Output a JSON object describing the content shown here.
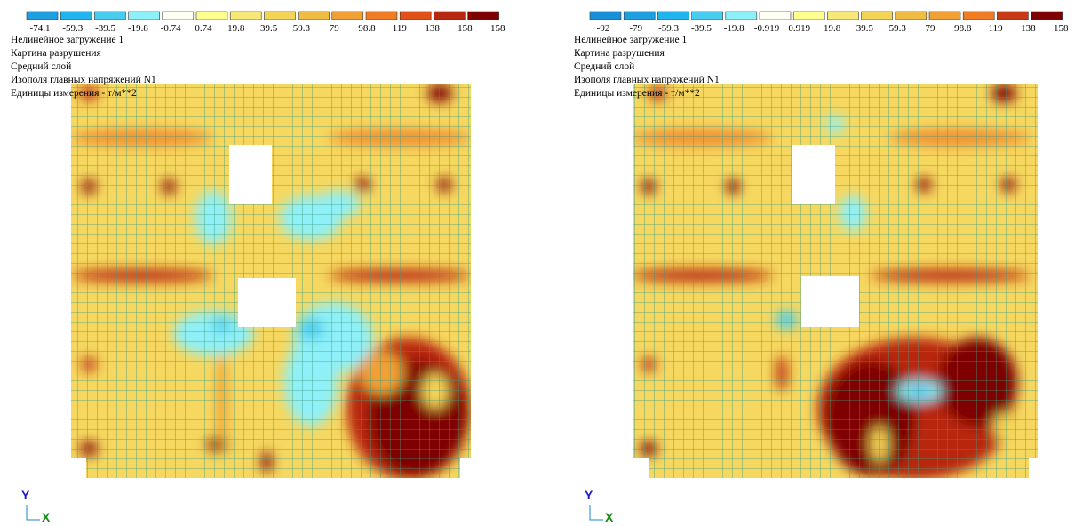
{
  "panels": [
    {
      "legend": {
        "labels": [
          "-74.1",
          "-59.3",
          "-39.5",
          "-19.8",
          "-0.74",
          "0.74",
          "19.8",
          "39.5",
          "59.3",
          "79",
          "98.8",
          "119",
          "138",
          "158"
        ],
        "end_label": "158",
        "colors": [
          "#1e9fe0",
          "#22b4ec",
          "#48cdf0",
          "#8ef0f8",
          "#fffff2",
          "#ffff90",
          "#f8e878",
          "#f4d458",
          "#f0bc44",
          "#f0a034",
          "#f07c24",
          "#e05018",
          "#b82810",
          "#7e0000"
        ]
      },
      "lines": [
        "Нелинейное загружение  1",
        "Картина разрушения",
        "Средний слой",
        "Изополя главных напряжений N1",
        "Единицы измерения - т/м**2"
      ],
      "axes": {
        "y": "Y",
        "x": "X"
      }
    },
    {
      "legend": {
        "labels": [
          "-92",
          "-79",
          "-59.3",
          "-39.5",
          "-19.8",
          "-0.919",
          "0.919",
          "19.8",
          "39.5",
          "59.3",
          "79",
          "98.8",
          "119",
          "138"
        ],
        "end_label": "158",
        "colors": [
          "#1890d8",
          "#1e9fe0",
          "#22b4ec",
          "#48cdf0",
          "#8ef0f8",
          "#fffff2",
          "#ffff90",
          "#f8e878",
          "#f4d458",
          "#f0bc44",
          "#f0a034",
          "#f07c24",
          "#c83a14",
          "#7e0000"
        ]
      },
      "lines": [
        "Нелинейное загружение  1",
        "Картина разрушения",
        "Средний слой",
        "Изополя главных напряжений N1",
        "Единицы измерения - т/м**2"
      ],
      "axes": {
        "y": "Y",
        "x": "X"
      }
    }
  ]
}
